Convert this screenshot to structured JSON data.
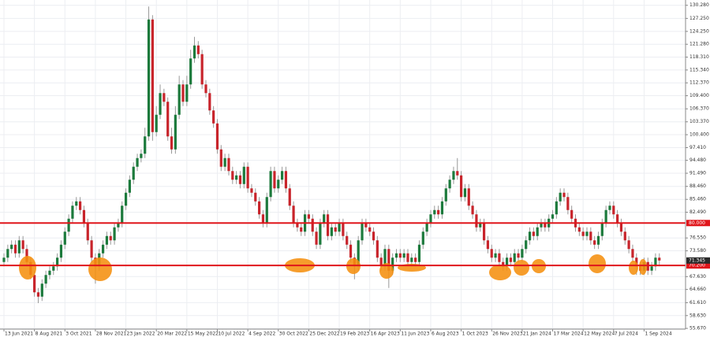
{
  "chart_data": {
    "type": "candlestick",
    "categories": [
      "13 Jun 2021",
      null,
      null,
      null,
      null,
      null,
      null,
      null,
      "8 Aug 2021",
      null,
      null,
      null,
      null,
      null,
      null,
      null,
      "3 Oct 2021",
      null,
      null,
      null,
      null,
      null,
      null,
      null,
      "28 Nov 2021",
      null,
      null,
      null,
      null,
      null,
      null,
      null,
      "23 Jan 2022",
      null,
      null,
      null,
      null,
      null,
      null,
      null,
      "20 Mar 2022",
      null,
      null,
      null,
      null,
      null,
      null,
      null,
      "15 May 2022",
      null,
      null,
      null,
      null,
      null,
      null,
      null,
      "10 Jul 2022",
      null,
      null,
      null,
      null,
      null,
      null,
      null,
      "4 Sep 2022",
      null,
      null,
      null,
      null,
      null,
      null,
      null,
      "30 Oct 2022",
      null,
      null,
      null,
      null,
      null,
      null,
      null,
      "25 Dec 2022",
      null,
      null,
      null,
      null,
      null,
      null,
      null,
      "19 Feb 2023",
      null,
      null,
      null,
      null,
      null,
      null,
      null,
      "16 Apr 2023",
      null,
      null,
      null,
      null,
      null,
      null,
      null,
      "11 Jun 2023",
      null,
      null,
      null,
      null,
      null,
      null,
      null,
      "6 Aug 2023",
      null,
      null,
      null,
      null,
      null,
      null,
      null,
      "1 Oct 2023",
      null,
      null,
      null,
      null,
      null,
      null,
      null,
      "26 Nov 2023",
      null,
      null,
      null,
      null,
      null,
      null,
      null,
      "21 Jan 2024",
      null,
      null,
      null,
      null,
      null,
      null,
      null,
      "17 Mar 2024",
      null,
      null,
      null,
      null,
      null,
      null,
      null,
      "12 May 2024",
      null,
      null,
      null,
      null,
      null,
      null,
      null,
      "7 Jul 2024",
      null,
      null,
      null,
      null,
      null,
      null,
      null,
      "1 Sep 2024",
      null,
      null,
      null,
      null
    ],
    "open": [
      71,
      72,
      74,
      75,
      73,
      76,
      74,
      71,
      68,
      64,
      63,
      66,
      68,
      69,
      70,
      72,
      75,
      78,
      81,
      84,
      85,
      83,
      80,
      76,
      72,
      70,
      73,
      75,
      77,
      76,
      79,
      80,
      84,
      87,
      90,
      93,
      95,
      96,
      100,
      127,
      101,
      105,
      110,
      108,
      100,
      97,
      105,
      112,
      108,
      112,
      118,
      121,
      119,
      112,
      110,
      106,
      103,
      97,
      93,
      95,
      92,
      90,
      91,
      89,
      93,
      88,
      87,
      85,
      82,
      80,
      86,
      92,
      88,
      90,
      92,
      88,
      84,
      80,
      79,
      78,
      82,
      81,
      78,
      75,
      80,
      82,
      77,
      79,
      78,
      80,
      77,
      75,
      72,
      70,
      76,
      80,
      79,
      78,
      76,
      72,
      70,
      74,
      69,
      72,
      73,
      72,
      73,
      71,
      72,
      71,
      75,
      78,
      80,
      82,
      83,
      82,
      85,
      88,
      90,
      92,
      91,
      86,
      88,
      84,
      82,
      79,
      80,
      76,
      74,
      72,
      73,
      71,
      70,
      72,
      71,
      73,
      72,
      74,
      76,
      78,
      77,
      79,
      80,
      79,
      81,
      82,
      85,
      87,
      86,
      83,
      81,
      79,
      78,
      77,
      78,
      76,
      75,
      77,
      80,
      83,
      84,
      82,
      80,
      78,
      76,
      74,
      72,
      70,
      69,
      71,
      69,
      70,
      72
    ],
    "high": [
      73,
      75,
      76,
      76,
      77,
      77,
      75,
      72,
      69,
      65,
      67,
      69,
      70,
      71,
      73,
      76,
      79,
      82,
      85,
      86,
      86,
      84,
      81,
      77,
      73,
      74,
      76,
      78,
      78,
      80,
      81,
      85,
      88,
      91,
      94,
      96,
      97,
      102,
      130,
      128,
      107,
      112,
      111,
      109,
      102,
      107,
      114,
      113,
      114,
      120,
      123,
      122,
      120,
      113,
      111,
      107,
      104,
      98,
      96,
      96,
      93,
      92,
      92,
      94,
      94,
      89,
      88,
      86,
      83,
      87,
      93,
      93,
      91,
      93,
      93,
      89,
      85,
      81,
      80,
      83,
      83,
      82,
      79,
      81,
      83,
      83,
      80,
      80,
      81,
      81,
      78,
      76,
      73,
      77,
      81,
      81,
      80,
      79,
      77,
      73,
      75,
      75,
      73,
      74,
      74,
      74,
      74,
      73,
      73,
      76,
      79,
      81,
      83,
      84,
      84,
      86,
      89,
      91,
      93,
      95,
      92,
      89,
      89,
      85,
      83,
      81,
      81,
      77,
      75,
      74,
      74,
      72,
      73,
      73,
      74,
      74,
      75,
      77,
      79,
      79,
      80,
      81,
      81,
      82,
      83,
      86,
      88,
      88,
      87,
      84,
      82,
      80,
      79,
      79,
      79,
      77,
      78,
      81,
      84,
      85,
      85,
      83,
      81,
      79,
      77,
      75,
      73,
      71,
      72,
      72,
      71,
      73,
      73
    ],
    "low": [
      70,
      71,
      73,
      72,
      72,
      73,
      70,
      67,
      63,
      61.5,
      62,
      65,
      67,
      68,
      69,
      71,
      74,
      77,
      80,
      83,
      82,
      79,
      75,
      71,
      66,
      69,
      72,
      74,
      75,
      75,
      78,
      79,
      83,
      86,
      89,
      92,
      94,
      95,
      99,
      99,
      100,
      104,
      107,
      99,
      96,
      96,
      104,
      107,
      107,
      111,
      117,
      118,
      111,
      109,
      105,
      102,
      96,
      92,
      92,
      91,
      89,
      89,
      88,
      88,
      87,
      86,
      84,
      81,
      79,
      79,
      85,
      87,
      87,
      89,
      87,
      83,
      79,
      78,
      77,
      77,
      80,
      77,
      74,
      74,
      79,
      76,
      76,
      77,
      77,
      76,
      74,
      71,
      67,
      69,
      75,
      78,
      77,
      75,
      71,
      69,
      69,
      65,
      68,
      71,
      71,
      71,
      70,
      70,
      70,
      70,
      74,
      77,
      79,
      81,
      81,
      81,
      84,
      87,
      89,
      90,
      85,
      85,
      83,
      81,
      78,
      78,
      75,
      73,
      71,
      71,
      70,
      69,
      69,
      70,
      70,
      71,
      71,
      73,
      75,
      76,
      76,
      78,
      78,
      78,
      80,
      81,
      84,
      85,
      82,
      80,
      78,
      77,
      76,
      76,
      75,
      74,
      74,
      76,
      79,
      82,
      81,
      79,
      77,
      75,
      73,
      71,
      68,
      68,
      68,
      68,
      68,
      69,
      70
    ],
    "close": [
      72,
      74,
      75,
      73,
      76,
      74,
      71,
      68,
      64,
      63,
      66,
      68,
      69,
      70,
      72,
      75,
      78,
      81,
      84,
      85,
      83,
      80,
      76,
      72,
      70,
      73,
      75,
      77,
      76,
      79,
      80,
      84,
      87,
      90,
      93,
      95,
      96,
      100,
      127,
      101,
      105,
      110,
      108,
      100,
      97,
      105,
      112,
      108,
      112,
      118,
      121,
      119,
      112,
      110,
      106,
      103,
      97,
      93,
      95,
      92,
      90,
      91,
      89,
      93,
      88,
      87,
      85,
      82,
      80,
      86,
      92,
      88,
      90,
      92,
      88,
      84,
      80,
      79,
      78,
      82,
      81,
      78,
      75,
      80,
      82,
      77,
      79,
      78,
      80,
      77,
      75,
      72,
      70,
      76,
      80,
      79,
      78,
      76,
      72,
      70,
      74,
      69,
      72,
      73,
      72,
      73,
      71,
      72,
      71,
      75,
      78,
      80,
      82,
      83,
      82,
      85,
      88,
      90,
      92,
      91,
      86,
      88,
      84,
      82,
      79,
      80,
      76,
      74,
      72,
      73,
      71,
      70,
      72,
      71,
      73,
      72,
      74,
      76,
      78,
      77,
      79,
      80,
      79,
      81,
      82,
      85,
      87,
      86,
      83,
      81,
      79,
      78,
      77,
      78,
      76,
      75,
      77,
      80,
      83,
      84,
      82,
      80,
      78,
      76,
      74,
      72,
      70,
      69,
      71,
      69,
      70,
      72,
      71.345
    ],
    "up_color": "#1c7a3c",
    "down_color": "#c8242b",
    "ylim": [
      55.5,
      131.5
    ],
    "yticks": [
      {
        "value": 55.67,
        "label": "55.670"
      },
      {
        "value": 58.63,
        "label": "58.630"
      },
      {
        "value": 61.61,
        "label": "61.610"
      },
      {
        "value": 64.66,
        "label": "64.660"
      },
      {
        "value": 67.63,
        "label": "67.630"
      },
      {
        "value": 73.58,
        "label": "73.580"
      },
      {
        "value": 76.55,
        "label": "76.550"
      },
      {
        "value": 82.49,
        "label": "82.490"
      },
      {
        "value": 85.46,
        "label": "85.460"
      },
      {
        "value": 88.46,
        "label": "88.460"
      },
      {
        "value": 91.49,
        "label": "91.490"
      },
      {
        "value": 94.48,
        "label": "94.480"
      },
      {
        "value": 97.41,
        "label": "97.410"
      },
      {
        "value": 100.4,
        "label": "100.400"
      },
      {
        "value": 103.37,
        "label": "103.370"
      },
      {
        "value": 106.37,
        "label": "106.370"
      },
      {
        "value": 109.4,
        "label": "109.400"
      },
      {
        "value": 112.37,
        "label": "112.370"
      },
      {
        "value": 115.34,
        "label": "115.340"
      },
      {
        "value": 118.31,
        "label": "118.310"
      },
      {
        "value": 121.28,
        "label": "121.280"
      },
      {
        "value": 124.25,
        "label": "124.250"
      },
      {
        "value": 127.25,
        "label": "127.250"
      },
      {
        "value": 130.28,
        "label": "130.280"
      }
    ],
    "grid": true,
    "levels": [
      {
        "value": 80,
        "label": "80.000"
      },
      {
        "value": 70.2,
        "label": "70.200"
      }
    ],
    "level_color": "#e0161b",
    "last_price": {
      "value": 71.345,
      "label": "71.345"
    },
    "last_price_color": "#2b2b2b"
  }
}
